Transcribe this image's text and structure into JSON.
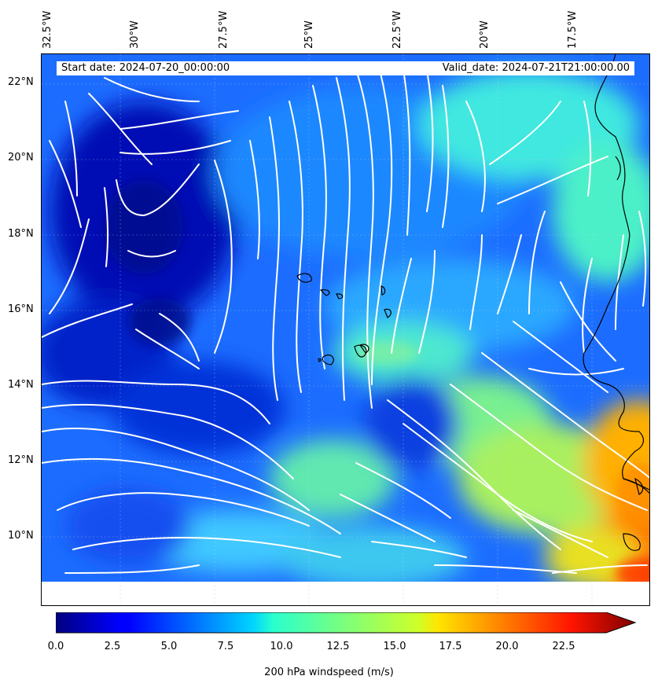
{
  "map": {
    "start_date": "Start date: 2024-07-20_00:00:00",
    "valid_date": "Valid_date: 2024-07-21T21:00:00.00",
    "lon_labels": [
      "32.5°W",
      "30°W",
      "27.5°W",
      "25°W",
      "22.5°W",
      "20°W",
      "17.5°W"
    ],
    "lon_values": [
      -32.5,
      -30,
      -27.5,
      -25,
      -22.5,
      -20,
      -17.5
    ],
    "lat_labels": [
      "22°N",
      "20°N",
      "18°N",
      "16°N",
      "14°N",
      "12°N",
      "10°N"
    ],
    "lat_values": [
      22,
      20,
      18,
      16,
      14,
      12,
      10
    ],
    "extent": {
      "lon_min": -32.5,
      "lon_max": -16.4,
      "lat_min": 8.9,
      "lat_max": 22.8
    },
    "field": "200 hPa windspeed",
    "streamline_color": "#ffffff",
    "coastline_color": "#000000"
  },
  "colorbar": {
    "label": "200 hPa windspeed (m/s)",
    "tick_labels": [
      "0.0",
      "2.5",
      "5.0",
      "7.5",
      "10.0",
      "12.5",
      "15.0",
      "17.5",
      "20.0",
      "22.5"
    ],
    "vmin": 0,
    "vmax": 25,
    "extend": "max",
    "colormap": "jet"
  }
}
